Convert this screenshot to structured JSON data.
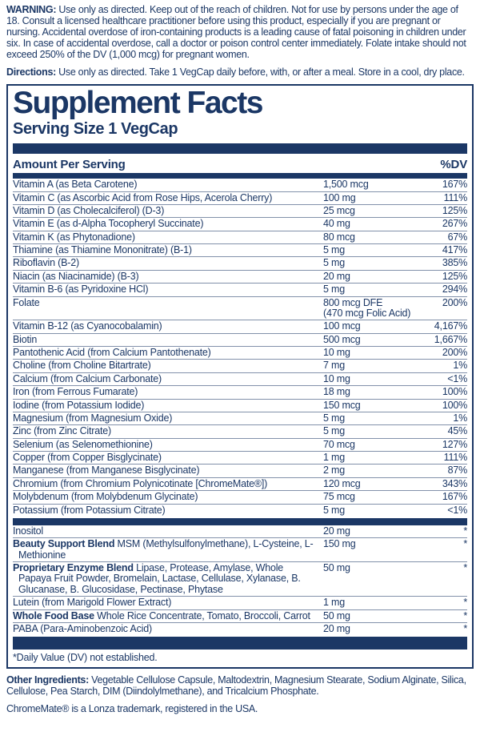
{
  "colors": {
    "navy": "#1b3765",
    "rule_line": "#5a719b"
  },
  "intro": {
    "warning_label": "WARNING:",
    "warning_text": " Use only as directed.  Keep out of the reach of children. Not for use by persons under the age of 18.  Consult a licensed healthcare practitioner before using this product, especially if you are pregnant or nursing.  Accidental overdose of iron-containing products is a leading cause of fatal poisoning in children under six.  In case of accidental overdose, call a doctor or poison control center immediately. Folate intake should not exceed 250% of the DV (1,000 mcg) for pregnant women.",
    "directions_label": "Directions:",
    "directions_text": " Use only as directed. Take 1 VegCap daily before, with, or after a meal. Store in a cool, dry place."
  },
  "panel": {
    "title": "Supplement Facts",
    "serving_size": "Serving Size 1 VegCap",
    "header": {
      "amount": "Amount Per Serving",
      "dv": "%DV"
    },
    "rows": [
      {
        "name": "Vitamin A (as Beta Carotene)",
        "amount": "1,500 mcg",
        "dv": "167%"
      },
      {
        "name": "Vitamin C (as Ascorbic Acid from Rose Hips, Acerola Cherry)",
        "amount": "100 mg",
        "dv": "111%"
      },
      {
        "name": "Vitamin D (as Cholecalciferol) (D-3)",
        "amount": "25 mcg",
        "dv": "125%"
      },
      {
        "name": "Vitamin E (as d-Alpha Tocopheryl Succinate)",
        "amount": "40 mg",
        "dv": "267%"
      },
      {
        "name": "Vitamin K (as Phytonadione)",
        "amount": "80 mcg",
        "dv": "67%"
      },
      {
        "name": "Thiamine (as Thiamine Mononitrate) (B-1)",
        "amount": "5 mg",
        "dv": "417%"
      },
      {
        "name": "Riboflavin (B-2)",
        "amount": "5 mg",
        "dv": "385%"
      },
      {
        "name": "Niacin (as Niacinamide) (B-3)",
        "amount": "20 mg",
        "dv": "125%"
      },
      {
        "name": "Vitamin B-6 (as Pyridoxine HCl)",
        "amount": "5 mg",
        "dv": "294%"
      },
      {
        "name": "Folate",
        "amount": "800 mcg DFE",
        "amount2": "(470 mcg Folic Acid)",
        "dv": "200%"
      },
      {
        "name": "Vitamin B-12 (as Cyanocobalamin)",
        "amount": "100 mcg",
        "dv": "4,167%"
      },
      {
        "name": "Biotin",
        "amount": "500 mcg",
        "dv": "1,667%"
      },
      {
        "name": "Pantothenic Acid (from Calcium Pantothenate)",
        "amount": "10 mg",
        "dv": "200%"
      },
      {
        "name": "Choline (from Choline Bitartrate)",
        "amount": "7 mg",
        "dv": "1%"
      },
      {
        "name": "Calcium (from Calcium Carbonate)",
        "amount": "10 mg",
        "dv": "<1%"
      },
      {
        "name": "Iron (from Ferrous Fumarate)",
        "amount": "18 mg",
        "dv": "100%"
      },
      {
        "name": "Iodine (from Potassium Iodide)",
        "amount": "150 mcg",
        "dv": "100%"
      },
      {
        "name": "Magnesium (from Magnesium Oxide)",
        "amount": "5 mg",
        "dv": "1%"
      },
      {
        "name": "Zinc (from Zinc Citrate)",
        "amount": "5 mg",
        "dv": "45%"
      },
      {
        "name": "Selenium (as Selenomethionine)",
        "amount": "70 mcg",
        "dv": "127%"
      },
      {
        "name": "Copper (from Copper Bisglycinate)",
        "amount": "1 mg",
        "dv": "111%"
      },
      {
        "name": "Manganese (from Manganese Bisglycinate)",
        "amount": "2 mg",
        "dv": "87%"
      },
      {
        "name": "Chromium (from Chromium Polynicotinate [ChromeMate®])",
        "amount": "120 mcg",
        "dv": "343%"
      },
      {
        "name": "Molybdenum (from Molybdenum Glycinate)",
        "amount": "75 mcg",
        "dv": "167%"
      },
      {
        "name": "Potassium (from Potassium Citrate)",
        "amount": "5 mg",
        "dv": "<1%"
      },
      {
        "divider_before": true,
        "name": "Inositol",
        "amount": "20 mg",
        "dv": "*"
      },
      {
        "bold": "Beauty Support Blend",
        "name": " MSM (Methylsulfonylmethane), L-Cysteine, L-Methionine",
        "amount": "150 mg",
        "dv": "*"
      },
      {
        "bold": "Proprietary Enzyme Blend",
        "name": " Lipase, Protease, Amylase, Whole Papaya Fruit Powder, Bromelain, Lactase, Cellulase, Xylanase, B. Glucanase, B. Glucosidase, Pectinase, Phytase",
        "amount": "50 mg",
        "dv": "*"
      },
      {
        "name": "Lutein (from Marigold Flower Extract)",
        "amount": "1 mg",
        "dv": "*"
      },
      {
        "bold": "Whole Food Base",
        "name": " Whole Rice Concentrate, Tomato, Broccoli, Carrot",
        "amount": "50 mg",
        "dv": "*"
      },
      {
        "name": "PABA (Para-Aminobenzoic Acid)",
        "amount": "20 mg",
        "dv": "*"
      }
    ],
    "footnote": "*Daily Value (DV) not established."
  },
  "footer": {
    "other_ingredients_label": "Other Ingredients:",
    "other_ingredients_text": " Vegetable Cellulose Capsule, Maltodextrin, Magnesium Stearate, Sodium Alginate, Silica, Cellulose, Pea Starch, DIM (Diindolylmethane), and Tricalcium Phosphate.",
    "trademark": "ChromeMate® is a Lonza trademark, registered in the USA."
  }
}
